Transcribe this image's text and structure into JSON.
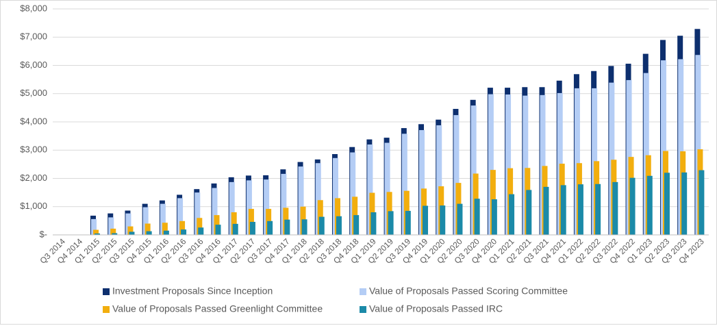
{
  "chart_data": {
    "type": "bar",
    "categories": [
      "Q3 2014",
      "Q4 2014",
      "Q1 2015",
      "Q2 2015",
      "Q3 2015",
      "Q4 2015",
      "Q1 2016",
      "Q2 2016",
      "Q3 2016",
      "Q4 2016",
      "Q1 2017",
      "Q2 2017",
      "Q3 2017",
      "Q4 2017",
      "Q1 2018",
      "Q2 2018",
      "Q3 2018",
      "Q4 2018",
      "Q1 2019",
      "Q2 2019",
      "Q3 2019",
      "Q4 2019",
      "Q1 2020",
      "Q2 2020",
      "Q3 2020",
      "Q4 2020",
      "Q1 2021",
      "Q2 2021",
      "Q3 2021",
      "Q4 2021",
      "Q1 2022",
      "Q2 2022",
      "Q3 2022",
      "Q4 2022",
      "Q1 2023",
      "Q2 2023",
      "Q3 2023",
      "Q4 2023"
    ],
    "series": [
      {
        "name": "Investment Proposals Since Inception",
        "color": "#0d2f6e",
        "values": [
          0,
          0,
          680,
          760,
          860,
          1100,
          1220,
          1420,
          1620,
          1820,
          2040,
          2100,
          2110,
          2320,
          2580,
          2670,
          2860,
          3110,
          3380,
          3440,
          3780,
          3920,
          4080,
          4460,
          4780,
          5210,
          5210,
          5230,
          5230,
          5460,
          5690,
          5800,
          5980,
          6060,
          6410,
          6900,
          7050,
          7290
        ]
      },
      {
        "name": "Value of Proposals Passed Scoring Committee",
        "color": "#b4cdf5",
        "values": [
          0,
          0,
          560,
          620,
          760,
          980,
          1100,
          1300,
          1500,
          1660,
          1870,
          1930,
          1960,
          2160,
          2420,
          2540,
          2720,
          2920,
          3200,
          3260,
          3580,
          3710,
          3880,
          4240,
          4580,
          4980,
          4970,
          4930,
          4950,
          5020,
          5190,
          5190,
          5390,
          5480,
          5730,
          6180,
          6220,
          6370
        ]
      },
      {
        "name": "Value of Proposals Passed Greenlight Committee",
        "color": "#f2ae0e",
        "values": [
          0,
          0,
          180,
          220,
          300,
          400,
          430,
          490,
          600,
          700,
          800,
          920,
          920,
          960,
          1000,
          1230,
          1300,
          1350,
          1490,
          1520,
          1560,
          1640,
          1720,
          1840,
          2170,
          2300,
          2360,
          2370,
          2440,
          2520,
          2540,
          2610,
          2660,
          2760,
          2820,
          2970,
          2960,
          3030
        ]
      },
      {
        "name": "Value of Proposals Passed IRC",
        "color": "#1b8aa8",
        "values": [
          0,
          0,
          50,
          60,
          110,
          130,
          150,
          190,
          260,
          360,
          390,
          460,
          490,
          540,
          550,
          640,
          660,
          700,
          800,
          840,
          850,
          1030,
          1040,
          1100,
          1280,
          1260,
          1440,
          1590,
          1700,
          1760,
          1790,
          1800,
          1870,
          2020,
          2090,
          2200,
          2210,
          2290
        ]
      }
    ],
    "ylim": [
      0,
      8000
    ],
    "yticks": [
      {
        "value": 0,
        "label": "$-"
      },
      {
        "value": 1000,
        "label": "$1,000"
      },
      {
        "value": 2000,
        "label": "$2,000"
      },
      {
        "value": 3000,
        "label": "$3,000"
      },
      {
        "value": 4000,
        "label": "$4,000"
      },
      {
        "value": 5000,
        "label": "$5,000"
      },
      {
        "value": 6000,
        "label": "$6,000"
      },
      {
        "value": 7000,
        "label": "$7,000"
      },
      {
        "value": 8000,
        "label": "$8,000"
      }
    ],
    "grid": true,
    "legend": "bottom"
  }
}
